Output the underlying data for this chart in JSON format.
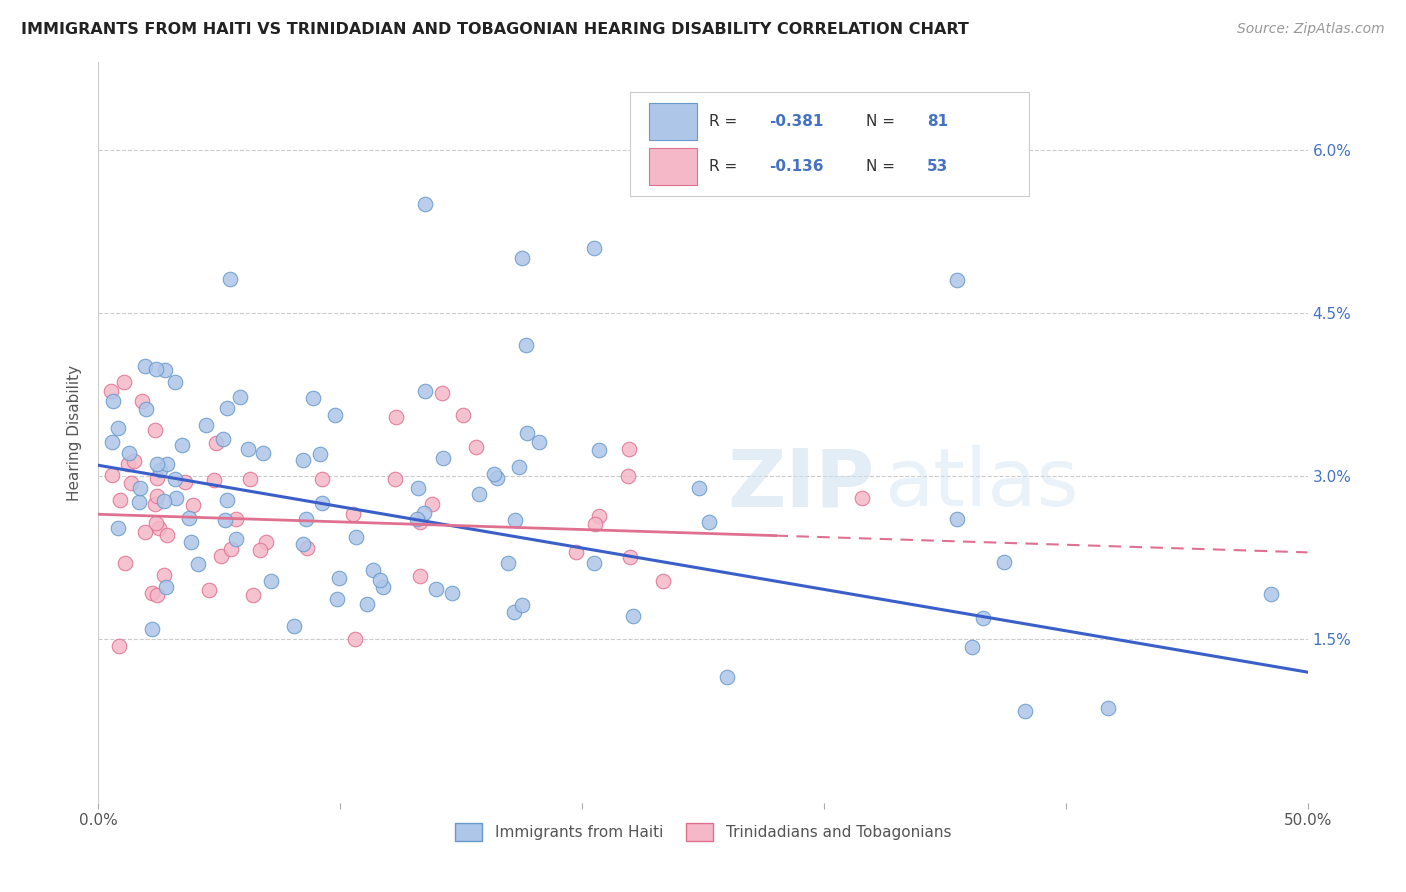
{
  "title": "IMMIGRANTS FROM HAITI VS TRINIDADIAN AND TOBAGONIAN HEARING DISABILITY CORRELATION CHART",
  "source": "Source: ZipAtlas.com",
  "ylabel": "Hearing Disability",
  "xlim": [
    0.0,
    0.5
  ],
  "ylim": [
    0.0,
    0.068
  ],
  "haiti_color": "#aec6e8",
  "haiti_edge_color": "#6699cc",
  "tt_color": "#f4b8c8",
  "tt_edge_color": "#e07090",
  "trendline_haiti_color": "#3a5fc8",
  "trendline_tt_color": "#e07090",
  "watermark_zip": "ZIP",
  "watermark_atlas": "atlas",
  "legend_text": [
    [
      "R = ",
      "-0.381",
      "   N = ",
      "81"
    ],
    [
      "R = ",
      "-0.136",
      "   N = ",
      "53"
    ]
  ],
  "legend_colors": [
    "#aec6e8",
    "#f4b8c8"
  ],
  "legend_edge_colors": [
    "#6699cc",
    "#e07090"
  ]
}
